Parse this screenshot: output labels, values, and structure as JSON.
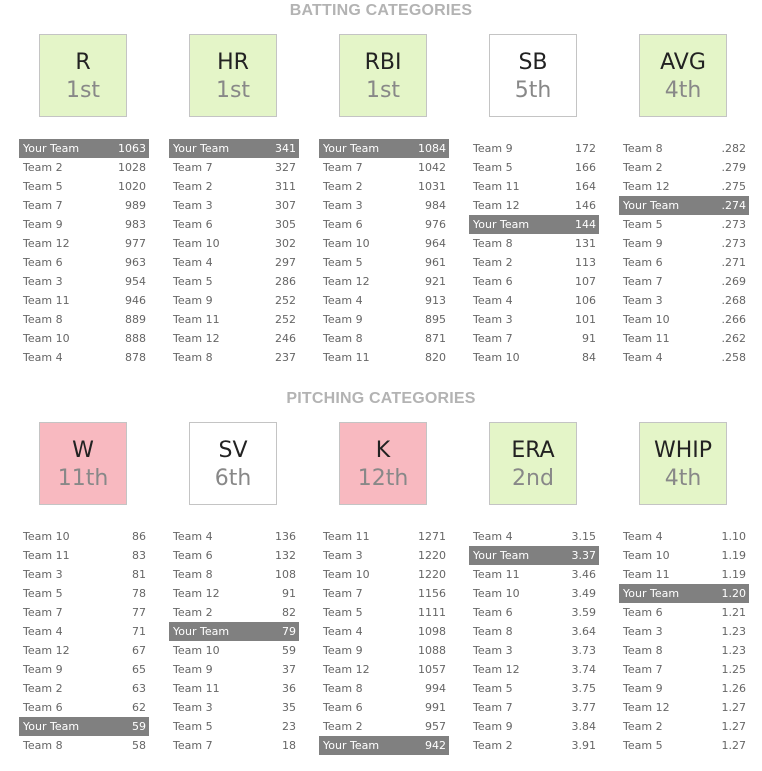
{
  "sections": [
    {
      "title": "BATTING CATEGORIES",
      "categories": [
        {
          "name": "R",
          "rank": "1st",
          "status": "good",
          "rows": [
            {
              "team": "Your Team",
              "value": "1063",
              "mine": true
            },
            {
              "team": "Team 2",
              "value": "1028"
            },
            {
              "team": "Team 5",
              "value": "1020"
            },
            {
              "team": "Team 7",
              "value": "989"
            },
            {
              "team": "Team 9",
              "value": "983"
            },
            {
              "team": "Team 12",
              "value": "977"
            },
            {
              "team": "Team 6",
              "value": "963"
            },
            {
              "team": "Team 3",
              "value": "954"
            },
            {
              "team": "Team 11",
              "value": "946"
            },
            {
              "team": "Team 8",
              "value": "889"
            },
            {
              "team": "Team 10",
              "value": "888"
            },
            {
              "team": "Team 4",
              "value": "878"
            }
          ]
        },
        {
          "name": "HR",
          "rank": "1st",
          "status": "good",
          "rows": [
            {
              "team": "Your Team",
              "value": "341",
              "mine": true
            },
            {
              "team": "Team 7",
              "value": "327"
            },
            {
              "team": "Team 2",
              "value": "311"
            },
            {
              "team": "Team 3",
              "value": "307"
            },
            {
              "team": "Team 6",
              "value": "305"
            },
            {
              "team": "Team 10",
              "value": "302"
            },
            {
              "team": "Team 4",
              "value": "297"
            },
            {
              "team": "Team 5",
              "value": "286"
            },
            {
              "team": "Team 9",
              "value": "252"
            },
            {
              "team": "Team 11",
              "value": "252"
            },
            {
              "team": "Team 12",
              "value": "246"
            },
            {
              "team": "Team 8",
              "value": "237"
            }
          ]
        },
        {
          "name": "RBI",
          "rank": "1st",
          "status": "good",
          "rows": [
            {
              "team": "Your Team",
              "value": "1084",
              "mine": true
            },
            {
              "team": "Team 7",
              "value": "1042"
            },
            {
              "team": "Team 2",
              "value": "1031"
            },
            {
              "team": "Team 3",
              "value": "984"
            },
            {
              "team": "Team 6",
              "value": "976"
            },
            {
              "team": "Team 10",
              "value": "964"
            },
            {
              "team": "Team 5",
              "value": "961"
            },
            {
              "team": "Team 12",
              "value": "921"
            },
            {
              "team": "Team 4",
              "value": "913"
            },
            {
              "team": "Team 9",
              "value": "895"
            },
            {
              "team": "Team 8",
              "value": "871"
            },
            {
              "team": "Team 11",
              "value": "820"
            }
          ]
        },
        {
          "name": "SB",
          "rank": "5th",
          "status": "mid",
          "rows": [
            {
              "team": "Team 9",
              "value": "172"
            },
            {
              "team": "Team 5",
              "value": "166"
            },
            {
              "team": "Team 11",
              "value": "164"
            },
            {
              "team": "Team 12",
              "value": "146"
            },
            {
              "team": "Your Team",
              "value": "144",
              "mine": true
            },
            {
              "team": "Team 8",
              "value": "131"
            },
            {
              "team": "Team 2",
              "value": "113"
            },
            {
              "team": "Team 6",
              "value": "107"
            },
            {
              "team": "Team 4",
              "value": "106"
            },
            {
              "team": "Team 3",
              "value": "101"
            },
            {
              "team": "Team 7",
              "value": "91"
            },
            {
              "team": "Team 10",
              "value": "84"
            }
          ]
        },
        {
          "name": "AVG",
          "rank": "4th",
          "status": "good",
          "rows": [
            {
              "team": "Team 8",
              "value": ".282"
            },
            {
              "team": "Team 2",
              "value": ".279"
            },
            {
              "team": "Team 12",
              "value": ".275"
            },
            {
              "team": "Your Team",
              "value": ".274",
              "mine": true
            },
            {
              "team": "Team 5",
              "value": ".273"
            },
            {
              "team": "Team 9",
              "value": ".273"
            },
            {
              "team": "Team 6",
              "value": ".271"
            },
            {
              "team": "Team 7",
              "value": ".269"
            },
            {
              "team": "Team 3",
              "value": ".268"
            },
            {
              "team": "Team 10",
              "value": ".266"
            },
            {
              "team": "Team 11",
              "value": ".262"
            },
            {
              "team": "Team 4",
              "value": ".258"
            }
          ]
        }
      ]
    },
    {
      "title": "PITCHING CATEGORIES",
      "categories": [
        {
          "name": "W",
          "rank": "11th",
          "status": "bad",
          "rows": [
            {
              "team": "Team 10",
              "value": "86"
            },
            {
              "team": "Team 11",
              "value": "83"
            },
            {
              "team": "Team 3",
              "value": "81"
            },
            {
              "team": "Team 5",
              "value": "78"
            },
            {
              "team": "Team 7",
              "value": "77"
            },
            {
              "team": "Team 4",
              "value": "71"
            },
            {
              "team": "Team 12",
              "value": "67"
            },
            {
              "team": "Team 9",
              "value": "65"
            },
            {
              "team": "Team 2",
              "value": "63"
            },
            {
              "team": "Team 6",
              "value": "62"
            },
            {
              "team": "Your Team",
              "value": "59",
              "mine": true
            },
            {
              "team": "Team 8",
              "value": "58"
            }
          ]
        },
        {
          "name": "SV",
          "rank": "6th",
          "status": "mid",
          "rows": [
            {
              "team": "Team 4",
              "value": "136"
            },
            {
              "team": "Team 6",
              "value": "132"
            },
            {
              "team": "Team 8",
              "value": "108"
            },
            {
              "team": "Team 12",
              "value": "91"
            },
            {
              "team": "Team 2",
              "value": "82"
            },
            {
              "team": "Your Team",
              "value": "79",
              "mine": true
            },
            {
              "team": "Team 10",
              "value": "59"
            },
            {
              "team": "Team 9",
              "value": "37"
            },
            {
              "team": "Team 11",
              "value": "36"
            },
            {
              "team": "Team 3",
              "value": "35"
            },
            {
              "team": "Team 5",
              "value": "23"
            },
            {
              "team": "Team 7",
              "value": "18"
            }
          ]
        },
        {
          "name": "K",
          "rank": "12th",
          "status": "bad",
          "rows": [
            {
              "team": "Team 11",
              "value": "1271"
            },
            {
              "team": "Team 3",
              "value": "1220"
            },
            {
              "team": "Team 10",
              "value": "1220"
            },
            {
              "team": "Team 7",
              "value": "1156"
            },
            {
              "team": "Team 5",
              "value": "1111"
            },
            {
              "team": "Team 4",
              "value": "1098"
            },
            {
              "team": "Team 9",
              "value": "1088"
            },
            {
              "team": "Team 12",
              "value": "1057"
            },
            {
              "team": "Team 8",
              "value": "994"
            },
            {
              "team": "Team 6",
              "value": "991"
            },
            {
              "team": "Team 2",
              "value": "957"
            },
            {
              "team": "Your Team",
              "value": "942",
              "mine": true
            }
          ]
        },
        {
          "name": "ERA",
          "rank": "2nd",
          "status": "good",
          "rows": [
            {
              "team": "Team 4",
              "value": "3.15"
            },
            {
              "team": "Your Team",
              "value": "3.37",
              "mine": true
            },
            {
              "team": "Team 11",
              "value": "3.46"
            },
            {
              "team": "Team 10",
              "value": "3.49"
            },
            {
              "team": "Team 6",
              "value": "3.59"
            },
            {
              "team": "Team 8",
              "value": "3.64"
            },
            {
              "team": "Team 3",
              "value": "3.73"
            },
            {
              "team": "Team 12",
              "value": "3.74"
            },
            {
              "team": "Team 5",
              "value": "3.75"
            },
            {
              "team": "Team 7",
              "value": "3.77"
            },
            {
              "team": "Team 9",
              "value": "3.84"
            },
            {
              "team": "Team 2",
              "value": "3.91"
            }
          ]
        },
        {
          "name": "WHIP",
          "rank": "4th",
          "status": "good",
          "rows": [
            {
              "team": "Team 4",
              "value": "1.10"
            },
            {
              "team": "Team 10",
              "value": "1.19"
            },
            {
              "team": "Team 11",
              "value": "1.19"
            },
            {
              "team": "Your Team",
              "value": "1.20",
              "mine": true
            },
            {
              "team": "Team 6",
              "value": "1.21"
            },
            {
              "team": "Team 3",
              "value": "1.23"
            },
            {
              "team": "Team 8",
              "value": "1.23"
            },
            {
              "team": "Team 7",
              "value": "1.25"
            },
            {
              "team": "Team 9",
              "value": "1.26"
            },
            {
              "team": "Team 12",
              "value": "1.27"
            },
            {
              "team": "Team 2",
              "value": "1.27"
            },
            {
              "team": "Team 5",
              "value": "1.27"
            }
          ]
        }
      ]
    }
  ],
  "colors": {
    "good": "#e4f5c8",
    "mid": "#ffffff",
    "bad": "#f8b9c0",
    "highlight_row": "#808080"
  }
}
